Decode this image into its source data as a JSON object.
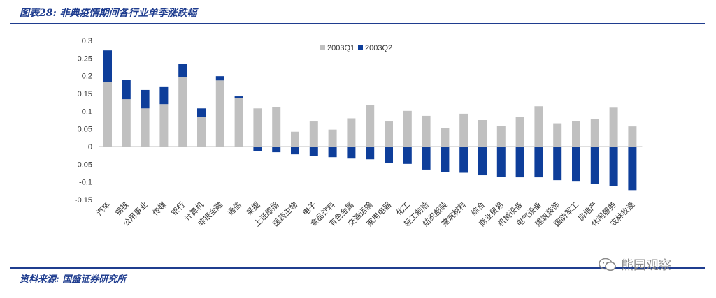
{
  "figure": {
    "title": "图表28: 非典疫情期间各行业单季涨跌幅",
    "source": "资料来源: 国盛证券研究所",
    "watermark": "熊园观察"
  },
  "colors": {
    "q1": "#c0c0c0",
    "q2": "#0e3e9a",
    "accent": "#1f3d8f"
  },
  "chart_data": {
    "type": "bar",
    "stacked": true,
    "categories": [
      "汽车",
      "钢铁",
      "公用事业",
      "传媒",
      "银行",
      "计算机",
      "非银金融",
      "通信",
      "采掘",
      "上证综指",
      "医药生物",
      "电子",
      "食品饮料",
      "有色金属",
      "交通运输",
      "家用电器",
      "化工",
      "轻工制造",
      "纺织服装",
      "建筑材料",
      "综合",
      "商业贸易",
      "机械设备",
      "电气设备",
      "建筑装饰",
      "国防军工",
      "房地产",
      "休闲服务",
      "农林牧渔"
    ],
    "series": [
      {
        "name": "2003Q1",
        "values": [
          0.183,
          0.134,
          0.108,
          0.12,
          0.196,
          0.083,
          0.187,
          0.137,
          0.108,
          0.112,
          0.042,
          0.071,
          0.048,
          0.08,
          0.118,
          0.071,
          0.101,
          0.087,
          0.052,
          0.093,
          0.075,
          0.059,
          0.084,
          0.114,
          0.066,
          0.072,
          0.077,
          0.11,
          0.057
        ]
      },
      {
        "name": "2003Q2",
        "values": [
          0.089,
          0.055,
          0.052,
          0.05,
          0.038,
          0.025,
          0.012,
          0.005,
          -0.012,
          -0.016,
          -0.022,
          -0.026,
          -0.03,
          -0.034,
          -0.036,
          -0.046,
          -0.049,
          -0.065,
          -0.072,
          -0.074,
          -0.081,
          -0.085,
          -0.087,
          -0.087,
          -0.095,
          -0.099,
          -0.105,
          -0.112,
          -0.123
        ]
      }
    ],
    "yticks": [
      "0.3",
      "0.25",
      "0.2",
      "0.15",
      "0.1",
      "0.05",
      "0",
      "-0.05",
      "-0.1",
      "-0.15"
    ],
    "ylim": [
      -0.15,
      0.3
    ],
    "legend_position": "top-center",
    "grid": false
  }
}
